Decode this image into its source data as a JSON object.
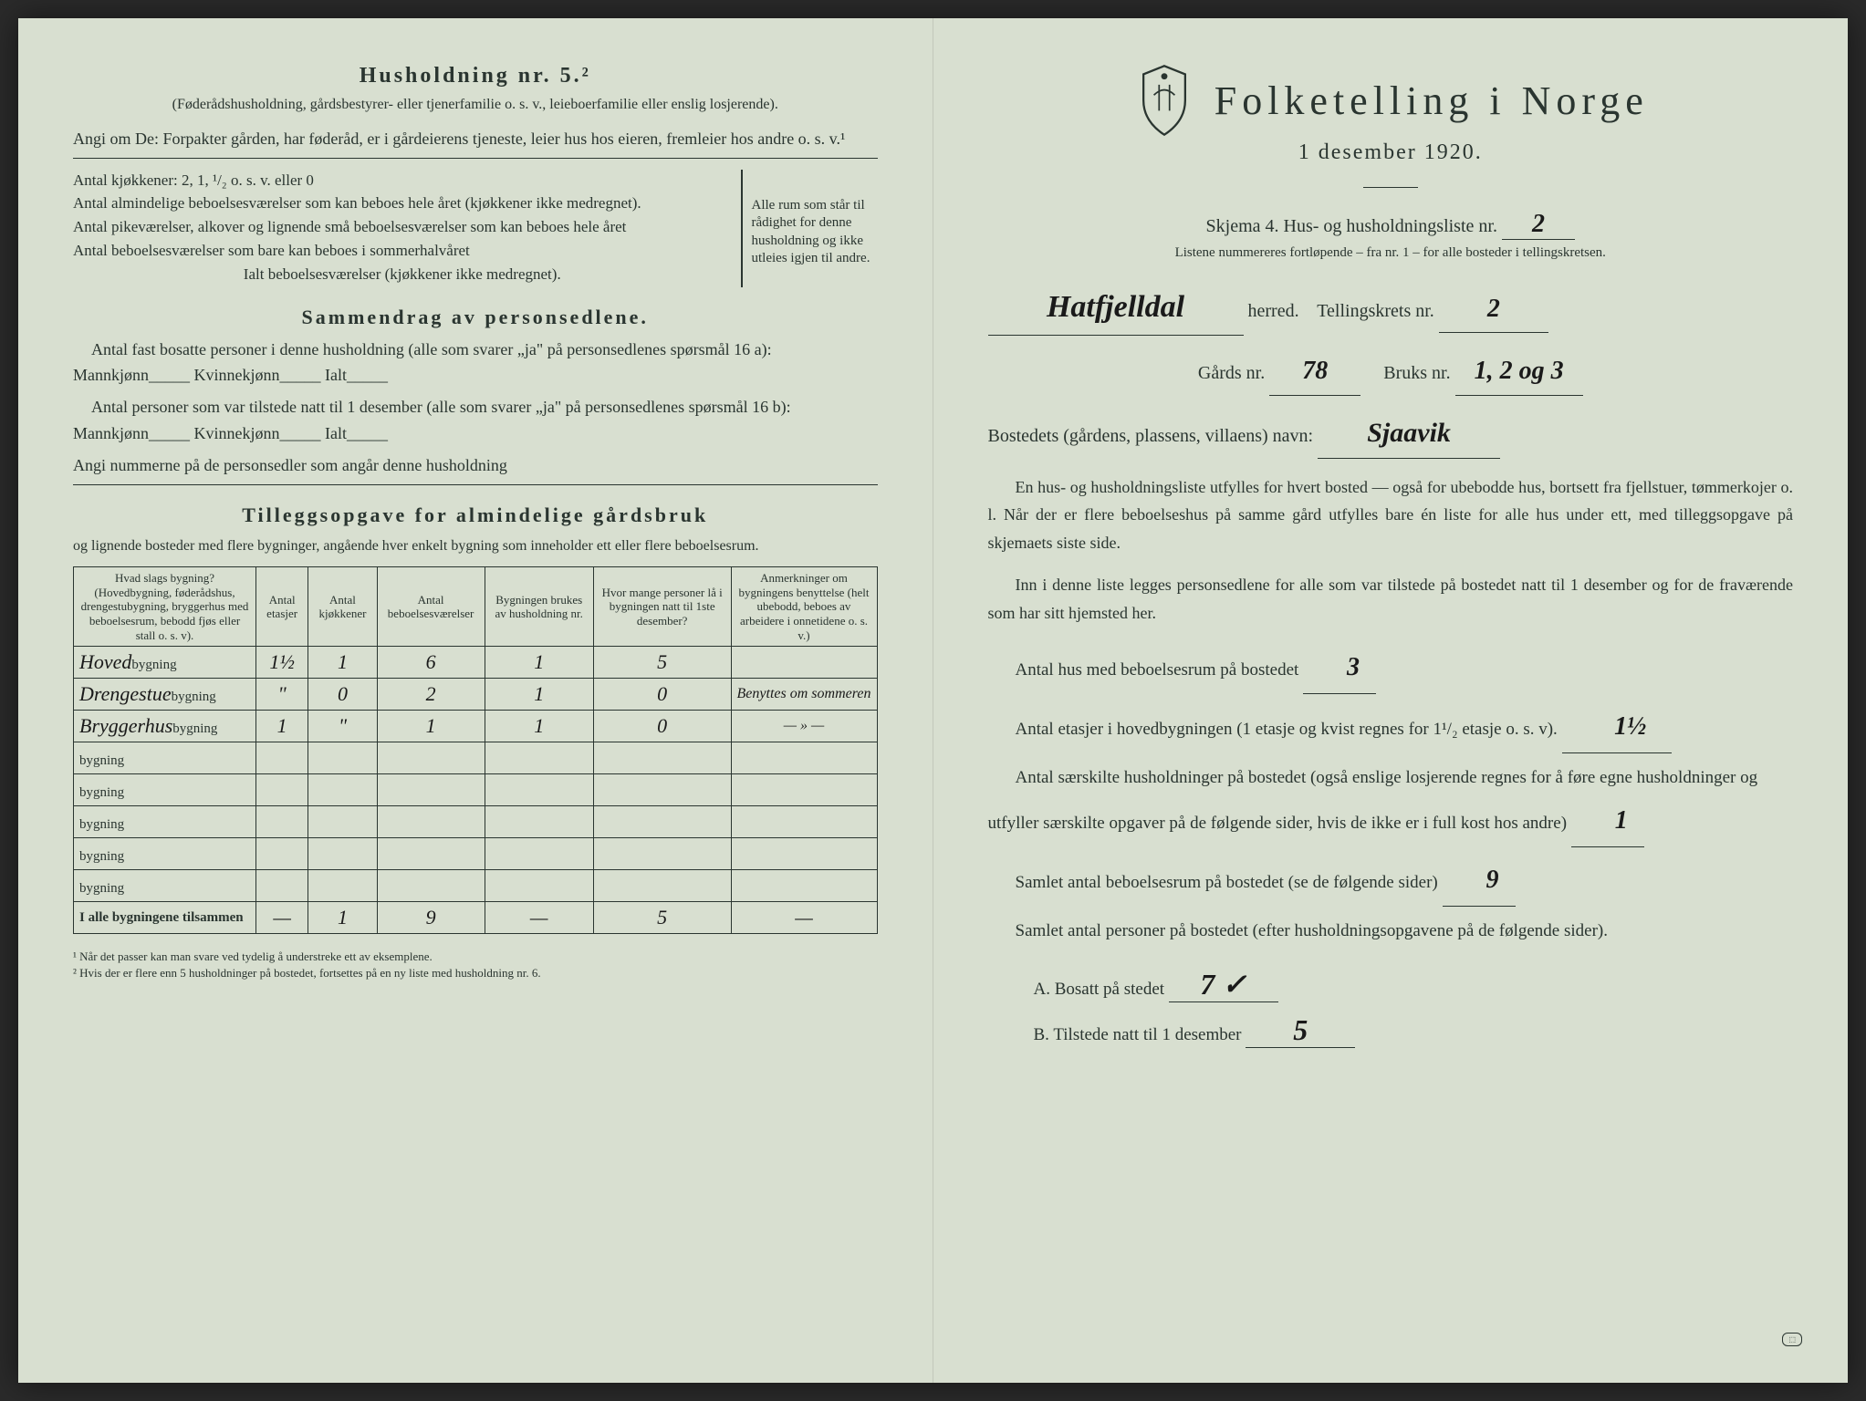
{
  "left": {
    "household_title": "Husholdning nr. 5.²",
    "household_note": "(Føderådshusholdning, gårdsbestyrer- eller tjenerfamilie o. s. v., leieboerfamilie eller enslig losjerende).",
    "angi_text": "Angi om De: Forpakter gården, har føderåd, er i gårdeierens tjeneste, leier hus hos eieren, fremleier hos andre o. s. v.¹",
    "kitchens_line": "Antal kjøkkener: 2, 1, ¹/₂ o. s. v. eller 0",
    "rooms": [
      "Antal almindelige beboelsesværelser som kan beboes hele året (kjøkkener ikke medregnet).",
      "Antal pikeværelser, alkover og lignende små beboelsesværelser som kan beboes hele året",
      "Antal beboelsesværelser som bare kan beboes i sommerhalvåret"
    ],
    "rooms_total": "Ialt beboelsesværelser (kjøkkener ikke medregnet).",
    "rooms_side_note": "Alle rum som står til rådighet for denne husholdning og ikke utleies igjen til andre.",
    "summary_title": "Sammendrag av personsedlene.",
    "summary_line1": "Antal fast bosatte personer i denne husholdning (alle som svarer „ja\" på personsedlenes spørsmål 16 a): Mannkjønn_____ Kvinnekjønn_____ Ialt_____",
    "summary_line2": "Antal personer som var tilstede natt til 1 desember (alle som svarer „ja\" på personsedlenes spørsmål 16 b): Mannkjønn_____ Kvinnekjønn_____ Ialt_____",
    "summary_line3": "Angi nummerne på de personsedler som angår denne husholdning",
    "tillegg_title": "Tilleggsopgave for almindelige gårdsbruk",
    "tillegg_note": "og lignende bosteder med flere bygninger, angående hver enkelt bygning som inneholder ett eller flere beboelsesrum.",
    "table": {
      "headers": [
        "Hvad slags bygning?\n(Hovedbygning, føderådshus, drengestubygning, bryggerhus med beboelsesrum, bebodd fjøs eller stall o. s. v).",
        "Antal etasjer",
        "Antal kjøkkener",
        "Antal beboelsesværelser",
        "Bygningen brukes av husholdning nr.",
        "Hvor mange personer lå i bygningen natt til 1ste desember?",
        "Anmerkninger om bygningens benyttelse (helt ubebodd, beboes av arbeidere i onnetidene o. s. v.)"
      ],
      "rows": [
        {
          "name": "Hoved",
          "etasjer": "1½",
          "kjokken": "1",
          "vaerelser": "6",
          "hushold": "1",
          "personer": "5",
          "anm": ""
        },
        {
          "name": "Drengestue",
          "etasjer": "\"",
          "kjokken": "0",
          "vaerelser": "2",
          "hushold": "1",
          "personer": "0",
          "anm": "Benyttes om sommeren"
        },
        {
          "name": "Bryggerhus",
          "etasjer": "1",
          "kjokken": "\"",
          "vaerelser": "1",
          "hushold": "1",
          "personer": "0",
          "anm": "— » —"
        },
        {
          "name": "",
          "etasjer": "",
          "kjokken": "",
          "vaerelser": "",
          "hushold": "",
          "personer": "",
          "anm": ""
        },
        {
          "name": "",
          "etasjer": "",
          "kjokken": "",
          "vaerelser": "",
          "hushold": "",
          "personer": "",
          "anm": ""
        },
        {
          "name": "",
          "etasjer": "",
          "kjokken": "",
          "vaerelser": "",
          "hushold": "",
          "personer": "",
          "anm": ""
        },
        {
          "name": "",
          "etasjer": "",
          "kjokken": "",
          "vaerelser": "",
          "hushold": "",
          "personer": "",
          "anm": ""
        },
        {
          "name": "",
          "etasjer": "",
          "kjokken": "",
          "vaerelser": "",
          "hushold": "",
          "personer": "",
          "anm": ""
        }
      ],
      "total_label": "I alle bygningene tilsammen",
      "totals": {
        "etasjer": "—",
        "kjokken": "1",
        "vaerelser": "9",
        "hushold": "—",
        "personer": "5",
        "anm": "—"
      }
    },
    "footnote1": "¹ Når det passer kan man svare ved tydelig å understreke ett av eksemplene.",
    "footnote2": "² Hvis der er flere enn 5 husholdninger på bostedet, fortsettes på en ny liste med husholdning nr. 6."
  },
  "right": {
    "main_title": "Folketelling i Norge",
    "date": "1 desember 1920.",
    "schema_label": "Skjema 4.  Hus- og husholdningsliste nr.",
    "schema_nr": "2",
    "liste_note": "Listene nummereres fortløpende – fra nr. 1 – for alle bosteder i tellingskretsen.",
    "herred_value": "Hatfjelldal",
    "herred_label": "herred.",
    "krets_label": "Tellingskrets nr.",
    "krets_value": "2",
    "gards_label": "Gårds nr.",
    "gards_value": "78",
    "bruks_label": "Bruks nr.",
    "bruks_value": "1, 2 og 3",
    "bosted_label": "Bostedets (gårdens, plassens, villaens) navn:",
    "bosted_value": "Sjaavik",
    "para1": "En hus- og husholdningsliste utfylles for hvert bosted — også for ubebodde hus, bortsett fra fjellstuer, tømmerkojer o. l. Når der er flere beboelseshus på samme gård utfylles bare én liste for alle hus under ett, med tilleggsopgave på skjemaets siste side.",
    "para2": "Inn i denne liste legges personsedlene for alle som var tilstede på bostedet natt til 1 desember og for de fraværende som har sitt hjemsted her.",
    "q_hus_label": "Antal hus med beboelsesrum på bostedet",
    "q_hus_value": "3",
    "q_etasjer_label": "Antal etasjer i hovedbygningen (1 etasje og kvist regnes for 1¹/₂ etasje o. s. v).",
    "q_etasjer_value": "1½",
    "q_hushold_label": "Antal særskilte husholdninger på bostedet (også enslige losjerende regnes for å føre egne husholdninger og utfyller særskilte opgaver på de følgende sider, hvis de ikke er i full kost hos andre)",
    "q_hushold_value": "1",
    "q_rum_label": "Samlet antal beboelsesrum på bostedet (se de følgende sider)",
    "q_rum_value": "9",
    "q_personer_label": "Samlet antal personer på bostedet (efter husholdningsopgavene på de følgende sider).",
    "bosatt_label": "A.  Bosatt på stedet",
    "bosatt_value": "7 ✓",
    "tilstede_label": "B.  Tilstede natt til 1 desember",
    "tilstede_value": "5"
  },
  "colors": {
    "paper": "#d8dfd0",
    "ink": "#2a3530",
    "handwriting": "#1a1a1a"
  }
}
